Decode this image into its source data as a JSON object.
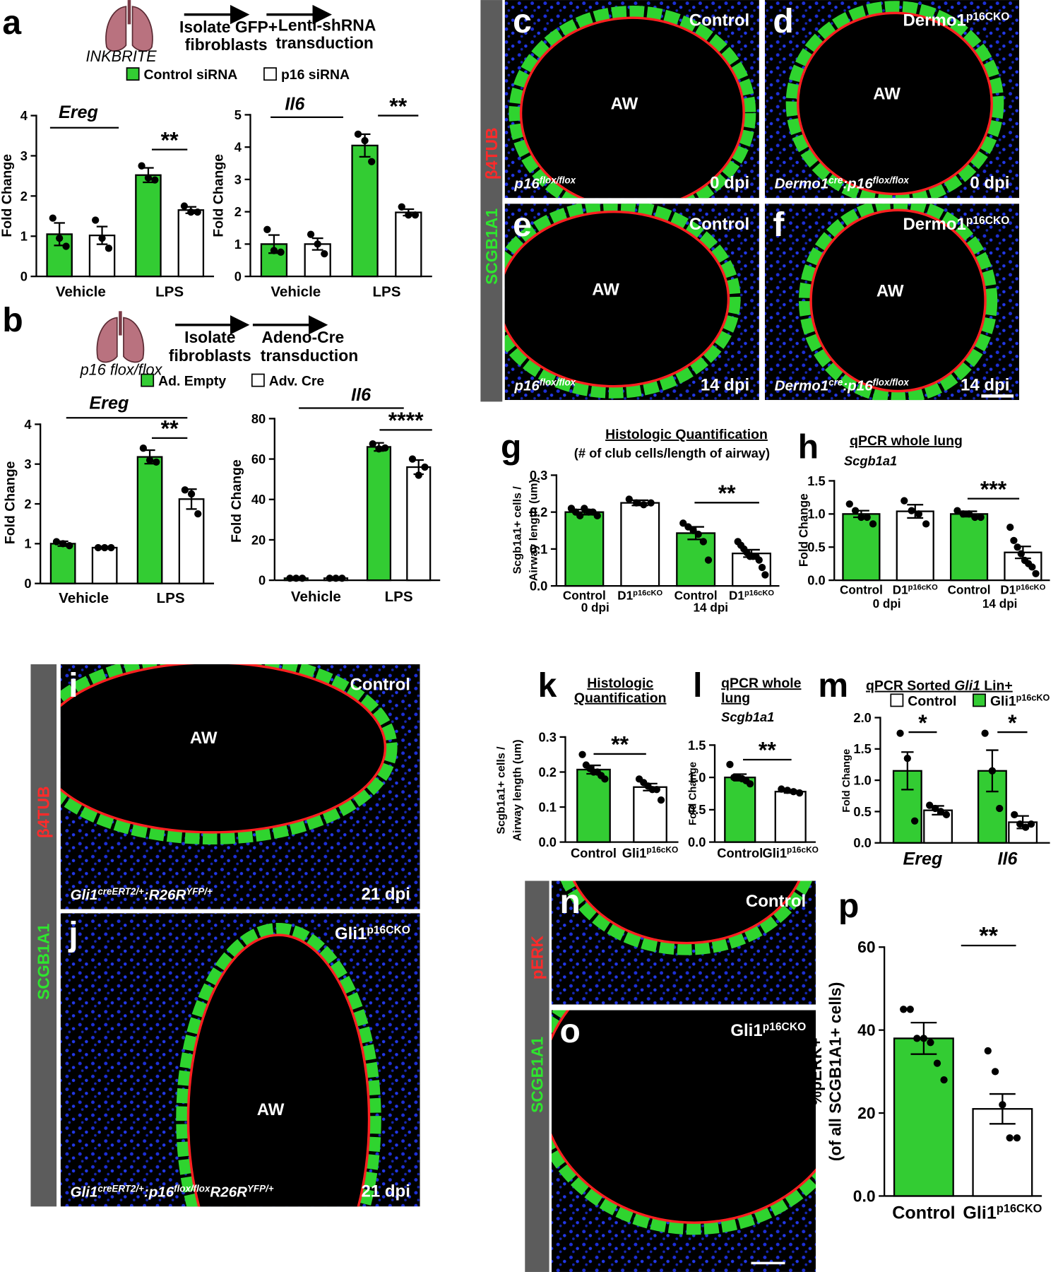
{
  "schematics": [
    {
      "mouse": "INKBRITE",
      "step1": [
        "Isolate GFP+",
        "fibroblasts"
      ],
      "step2": [
        "Lenti-shRNA",
        "transduction"
      ]
    },
    {
      "mouse": "p16 flox/flox",
      "step1": [
        "Isolate",
        "fibroblasts"
      ],
      "step2": [
        "Adeno-Cre",
        "transduction"
      ]
    }
  ],
  "stain_bars": [
    {
      "green": "SCGB1A1",
      "red": "β4TUB"
    },
    {
      "green": "SCGB1A1",
      "red": "β4TUB"
    },
    {
      "green": "SCGB1A1",
      "red": "pERK"
    }
  ],
  "images": [
    {
      "letter": "c",
      "top": "Control",
      "center": "AW",
      "genotype": [
        {
          "t": "p16"
        },
        {
          "sup": "flox/flox"
        }
      ],
      "time": "0 dpi"
    },
    {
      "letter": "d",
      "top": [
        {
          "t": "Dermo1"
        },
        {
          "sup": "p16CKO"
        }
      ],
      "center": "AW",
      "genotype": [
        {
          "t": "Dermo1"
        },
        {
          "sup": "cre"
        },
        {
          "t": ":p16"
        },
        {
          "sup": "flox/flox"
        }
      ],
      "time": "0 dpi"
    },
    {
      "letter": "e",
      "top": "Control",
      "center": "AW",
      "genotype": [
        {
          "t": "p16"
        },
        {
          "sup": "flox/flox"
        }
      ],
      "time": "14 dpi"
    },
    {
      "letter": "f",
      "top": [
        {
          "t": "Dermo1"
        },
        {
          "sup": "p16CKO"
        }
      ],
      "center": "AW",
      "genotype": [
        {
          "t": "Dermo1"
        },
        {
          "sup": "cre"
        },
        {
          "t": ":p16"
        },
        {
          "sup": "flox/flox"
        }
      ],
      "time": "14 dpi"
    },
    {
      "letter": "i",
      "top": "Control",
      "center": "AW",
      "genotype": [
        {
          "t": "Gli1"
        },
        {
          "sup": "creERT2/+"
        },
        {
          "t": ":R26R"
        },
        {
          "sup": "YFP/+"
        }
      ],
      "time": "21 dpi"
    },
    {
      "letter": "j",
      "top": [
        {
          "t": "Gli1"
        },
        {
          "sup": "p16CKO"
        }
      ],
      "center": "AW",
      "genotype": [
        {
          "t": "Gli1"
        },
        {
          "sup": "creERT2/+"
        },
        {
          "t": ":p16"
        },
        {
          "sup": "flox/flox"
        },
        {
          "t": "R26R"
        },
        {
          "sup": "YFP/+"
        }
      ],
      "time": "21 dpi"
    },
    {
      "letter": "n",
      "top": "Control"
    },
    {
      "letter": "o",
      "top": [
        {
          "t": "Gli1"
        },
        {
          "sup": "p16CKO"
        }
      ]
    }
  ],
  "chart_data": [
    {
      "type": "bar",
      "letter": "a",
      "title": "Ereg",
      "ylabel": "Fold Change",
      "categories": [
        "Vehicle",
        "LPS"
      ],
      "series": [
        {
          "name": "Control siRNA",
          "color": "#33cc33",
          "values": [
            1.05,
            2.52
          ],
          "errors": [
            0.28,
            0.18
          ],
          "points": [
            [
              1.45,
              0.95,
              0.75
            ],
            [
              2.75,
              2.45,
              2.4
            ]
          ]
        },
        {
          "name": "p16 siRNA",
          "color": "#ffffff",
          "values": [
            1.02,
            1.65
          ],
          "errors": [
            0.22,
            0.08
          ],
          "points": [
            [
              1.4,
              0.95,
              0.7
            ],
            [
              1.75,
              1.6,
              1.6
            ]
          ]
        }
      ],
      "ylim": [
        0,
        4
      ],
      "yticks": [
        0,
        1,
        2,
        3,
        4
      ],
      "annotations": [
        "**"
      ]
    },
    {
      "type": "bar",
      "title": "Il6",
      "ylabel": "Fold Change",
      "categories": [
        "Vehicle",
        "LPS"
      ],
      "series": [
        {
          "color": "#33cc33",
          "values": [
            1.0,
            4.05
          ],
          "errors": [
            0.28,
            0.35
          ],
          "points": [
            [
              1.45,
              0.8,
              0.75
            ],
            [
              4.4,
              4.2,
              3.55
            ]
          ]
        },
        {
          "color": "#ffffff",
          "values": [
            1.0,
            1.98
          ],
          "errors": [
            0.18,
            0.1
          ],
          "points": [
            [
              1.3,
              1.0,
              0.7
            ],
            [
              2.15,
              1.9,
              1.9
            ]
          ]
        }
      ],
      "ylim": [
        0,
        5
      ],
      "yticks": [
        0,
        1,
        2,
        3,
        4,
        5
      ],
      "annotations": [
        "**"
      ]
    },
    {
      "type": "bar",
      "letter": "b",
      "title": "Ereg",
      "ylabel": "Fold Change",
      "categories": [
        "Vehicle",
        "LPS"
      ],
      "series": [
        {
          "name": "Ad. Empty",
          "color": "#33cc33",
          "values": [
            1.0,
            3.18
          ],
          "errors": [
            0.06,
            0.17
          ],
          "points": [
            [
              1.05,
              1.0,
              0.95
            ],
            [
              3.4,
              3.1,
              3.05
            ]
          ]
        },
        {
          "name": "Adv. Cre",
          "color": "#ffffff",
          "values": [
            0.9,
            2.12
          ],
          "errors": [
            0.03,
            0.25
          ],
          "points": [
            [
              0.9,
              0.9,
              0.9
            ],
            [
              2.35,
              2.25,
              1.75
            ]
          ]
        }
      ],
      "ylim": [
        0,
        4
      ],
      "yticks": [
        0,
        1,
        2,
        3,
        4
      ],
      "annotations": [
        "**"
      ]
    },
    {
      "type": "bar",
      "title": "Il6",
      "ylabel": "Fold Change",
      "categories": [
        "Vehicle",
        "LPS"
      ],
      "series": [
        {
          "color": "#33cc33",
          "values": [
            1,
            66
          ],
          "errors": [
            0,
            2
          ],
          "points": [
            [
              1,
              1,
              1
            ],
            [
              67.5,
              65,
              65.5
            ]
          ]
        },
        {
          "color": "#ffffff",
          "values": [
            1,
            56
          ],
          "errors": [
            0,
            3.5
          ],
          "points": [
            [
              1,
              1,
              1
            ],
            [
              60,
              52,
              56
            ]
          ]
        }
      ],
      "ylim": [
        0,
        80
      ],
      "yticks": [
        0,
        20,
        40,
        60,
        80
      ],
      "annotations": [
        "****"
      ]
    },
    {
      "type": "bar",
      "letter": "g",
      "title": "Histologic Quantification",
      "subtitle": "(# of club cells/length of airway)",
      "ylabel": [
        "Scgb1a1+ cells /",
        "Airway length (um)"
      ],
      "categories": [
        "Control",
        [
          {
            "t": "D1"
          },
          {
            "sup": "p16cKO"
          }
        ],
        "Control",
        [
          {
            "t": "D1"
          },
          {
            "sup": "p16cKO"
          }
        ]
      ],
      "group_labels": [
        "0 dpi",
        "14 dpi"
      ],
      "values": [
        0.2,
        0.225,
        0.143,
        0.088
      ],
      "colors": [
        "#33cc33",
        "#ffffff",
        "#33cc33",
        "#ffffff"
      ],
      "errors": [
        0.007,
        0.007,
        0.017,
        0.01
      ],
      "points": [
        [
          0.21,
          0.2,
          0.19,
          0.21,
          0.2,
          0.2,
          0.19
        ],
        [
          0.235,
          0.225,
          0.22,
          0.225
        ],
        [
          0.17,
          0.16,
          0.15,
          0.14,
          0.12,
          0.07
        ],
        [
          0.12,
          0.11,
          0.1,
          0.09,
          0.08,
          0.08,
          0.08,
          0.07,
          0.05,
          0.03
        ]
      ],
      "ylim": [
        0,
        0.3
      ],
      "yticks": [
        {
          "value": 0,
          "label": "0.0"
        },
        0.1,
        0.2,
        0.3
      ],
      "annotations": [
        "**"
      ]
    },
    {
      "type": "bar",
      "letter": "h",
      "title": "qPCR whole lung",
      "subtitle": "Scgb1a1",
      "ylabel": "Fold Change",
      "categories": [
        "Control",
        [
          {
            "t": "D1"
          },
          {
            "sup": "p16cKO"
          }
        ],
        "Control",
        [
          {
            "t": "D1"
          },
          {
            "sup": "p16cKO"
          }
        ]
      ],
      "group_labels": [
        "0 dpi",
        "14 dpi"
      ],
      "values": [
        1.0,
        1.04,
        1.0,
        0.42
      ],
      "colors": [
        "#33cc33",
        "#ffffff",
        "#33cc33",
        "#ffffff"
      ],
      "errors": [
        0.05,
        0.1,
        0.04,
        0.09
      ],
      "points": [
        [
          1.15,
          1.05,
          0.95,
          0.95,
          0.85
        ],
        [
          1.2,
          1.05,
          1.0,
          0.85
        ],
        [
          1.05,
          1.0,
          1.0,
          0.95,
          0.95
        ],
        [
          0.8,
          0.6,
          0.5,
          0.4,
          0.3,
          0.25,
          0.2,
          0.1
        ]
      ],
      "ylim": [
        0,
        1.5
      ],
      "yticks": [
        {
          "value": 0,
          "label": "0.0"
        },
        0.5,
        {
          "value": 1,
          "label": "1.0"
        },
        1.5
      ],
      "annotations": [
        "***"
      ]
    },
    {
      "type": "bar",
      "letter": "k",
      "title": [
        "Histologic",
        "Quantification"
      ],
      "ylabel": [
        "Scgb1a1+ cells /",
        "Airway length (um)"
      ],
      "categories": [
        "Control",
        [
          {
            "t": "Gli1"
          },
          {
            "sup": "p16cKO"
          }
        ]
      ],
      "values": [
        0.207,
        0.157
      ],
      "colors": [
        "#33cc33",
        "#ffffff"
      ],
      "errors": [
        0.012,
        0.01
      ],
      "points": [
        [
          0.25,
          0.22,
          0.21,
          0.2,
          0.2,
          0.19,
          0.18
        ],
        [
          0.18,
          0.17,
          0.16,
          0.15,
          0.15,
          0.12
        ]
      ],
      "ylim": [
        0,
        0.3
      ],
      "yticks": [
        {
          "value": 0,
          "label": "0.0"
        },
        0.1,
        0.2,
        0.3
      ],
      "annotations": [
        "**"
      ]
    },
    {
      "type": "bar",
      "letter": "l",
      "title": [
        "qPCR whole",
        "lung"
      ],
      "subtitle": "Scgb1a1",
      "ylabel": "Fold Change",
      "categories": [
        "Control",
        [
          {
            "t": "Gli1"
          },
          {
            "sup": "p16cKO"
          }
        ]
      ],
      "values": [
        1.0,
        0.78
      ],
      "colors": [
        "#33cc33",
        "#ffffff"
      ],
      "errors": [
        0.05,
        0.02
      ],
      "points": [
        [
          1.2,
          1.0,
          1.0,
          0.98,
          0.95,
          0.9
        ],
        [
          0.82,
          0.8,
          0.78,
          0.76
        ]
      ],
      "ylim": [
        0,
        1.5
      ],
      "yticks": [
        {
          "value": 0,
          "label": "0.0"
        },
        0.5,
        {
          "value": 1,
          "label": "1.0"
        },
        1.5
      ],
      "annotations": [
        "**"
      ]
    },
    {
      "type": "bar",
      "letter": "m",
      "title": [
        {
          "t": "qPCR Sorted "
        },
        {
          "em": "Gli1"
        },
        {
          "t": " Lin+"
        }
      ],
      "ylabel": "Fold Change",
      "categories": [
        "Ereg",
        "Il6"
      ],
      "series": [
        {
          "name": [
            {
              "t": "Gli1"
            },
            {
              "sup": "p16cKO"
            }
          ],
          "color": "#33cc33",
          "values": [
            1.15,
            1.15
          ],
          "errors": [
            0.3,
            0.33
          ],
          "points": [
            [
              1.75,
              1.35,
              0.35
            ],
            [
              1.75,
              1.15,
              0.55
            ]
          ]
        },
        {
          "name": "Control",
          "color": "#ffffff",
          "values": [
            0.52,
            0.33
          ],
          "errors": [
            0.07,
            0.1
          ],
          "points": [
            [
              0.6,
              0.55,
              0.5,
              0.45
            ],
            [
              0.45,
              0.3,
              0.25,
              0.3
            ]
          ]
        }
      ],
      "ylim": [
        0,
        2
      ],
      "yticks": [
        {
          "value": 0,
          "label": "0.0"
        },
        0.5,
        {
          "value": 1,
          "label": "1.0"
        },
        1.5,
        {
          "value": 2,
          "label": "2.0"
        }
      ],
      "annotations": [
        "*",
        "*"
      ]
    },
    {
      "type": "bar",
      "letter": "p",
      "ylabel": [
        "%pERK+",
        "(of all SCGB1A1+ cells)"
      ],
      "categories": [
        "Control",
        [
          {
            "t": "Gli1"
          },
          {
            "sup": "p16CKO"
          }
        ]
      ],
      "values": [
        38,
        21
      ],
      "colors": [
        "#33cc33",
        "#ffffff"
      ],
      "errors": [
        3.8,
        3.6
      ],
      "points": [
        [
          45,
          45,
          38,
          38,
          37,
          32,
          28
        ],
        [
          35,
          30,
          22,
          14,
          14
        ]
      ],
      "ylim": [
        0,
        60
      ],
      "yticks": [
        {
          "value": 0,
          "label": "0.0"
        },
        20,
        40,
        60
      ],
      "annotations": [
        "**"
      ]
    }
  ]
}
